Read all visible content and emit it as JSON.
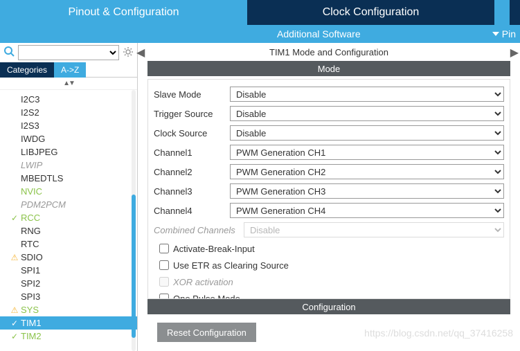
{
  "tabs": {
    "pinout": "Pinout & Configuration",
    "clock": "Clock Configuration"
  },
  "subbar": {
    "additional": "Additional Software",
    "pin": "Pin"
  },
  "search": {
    "placeholder": ""
  },
  "cat_tabs": {
    "categories": "Categories",
    "az": "A->Z"
  },
  "tree": [
    {
      "label": "I2C3"
    },
    {
      "label": "I2S2"
    },
    {
      "label": "I2S3"
    },
    {
      "label": "IWDG"
    },
    {
      "label": "LIBJPEG"
    },
    {
      "label": "LWIP",
      "disabled": true
    },
    {
      "label": "MBEDTLS"
    },
    {
      "label": "NVIC",
      "green": true
    },
    {
      "label": "PDM2PCM",
      "disabled": true
    },
    {
      "label": "RCC",
      "green": true,
      "mark": "check"
    },
    {
      "label": "RNG"
    },
    {
      "label": "RTC"
    },
    {
      "label": "SDIO",
      "mark": "warn"
    },
    {
      "label": "SPI1"
    },
    {
      "label": "SPI2"
    },
    {
      "label": "SPI3"
    },
    {
      "label": "SYS",
      "green": true,
      "mark": "warn"
    },
    {
      "label": "TIM1",
      "green": true,
      "mark": "check",
      "selected": true
    },
    {
      "label": "TIM2",
      "green": true,
      "mark": "check"
    }
  ],
  "tree_scroll": {
    "top_pct": 40,
    "height_pct": 55
  },
  "content": {
    "title": "TIM1 Mode and Configuration",
    "mode_header": "Mode",
    "config_header": "Configuration",
    "reset_btn": "Reset Configuration"
  },
  "mode_rows": [
    {
      "label": "Slave Mode",
      "value": "Disable"
    },
    {
      "label": "Trigger Source",
      "value": "Disable"
    },
    {
      "label": "Clock Source",
      "value": "Disable"
    },
    {
      "label": "Channel1",
      "value": "PWM Generation CH1"
    },
    {
      "label": "Channel2",
      "value": "PWM Generation CH2"
    },
    {
      "label": "Channel3",
      "value": "PWM Generation CH3"
    },
    {
      "label": "Channel4",
      "value": "PWM Generation CH4"
    }
  ],
  "combined": {
    "label": "Combined Channels",
    "value": "Disable"
  },
  "checks": [
    {
      "label": "Activate-Break-Input"
    },
    {
      "label": "Use ETR as Clearing Source"
    },
    {
      "label": "XOR activation",
      "disabled": true
    },
    {
      "label": "One Pulse Mode",
      "cut": true
    }
  ],
  "watermark": "https://blog.csdn.net/qq_37416258"
}
